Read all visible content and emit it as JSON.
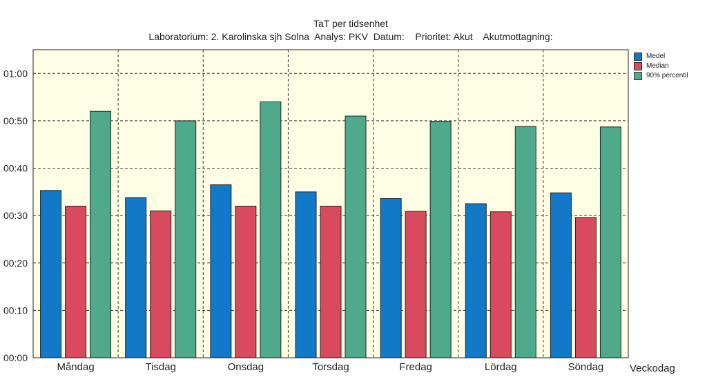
{
  "chart_data": {
    "type": "bar",
    "title": "TaT per tidsenhet",
    "subtitle": "Laboratorium: 2. Karolinska sjh Solna  Analys: PKV  Datum:    Prioritet: Akut    Akutmottagning:",
    "xlabel": "Veckodag",
    "ylabel": "",
    "y_unit": "minutes",
    "ylim": [
      0,
      65
    ],
    "y_ticks": [
      0,
      10,
      20,
      30,
      40,
      50,
      60
    ],
    "y_tick_labels": [
      "00:00",
      "00:10",
      "00:20",
      "00:30",
      "00:40",
      "00:50",
      "01:00"
    ],
    "grid": true,
    "legend_position": "right",
    "plot_background": "#ffffe6",
    "categories": [
      "Måndag",
      "Tisdag",
      "Onsdag",
      "Torsdag",
      "Fredag",
      "Lördag",
      "Söndag"
    ],
    "series": [
      {
        "name": "Medel",
        "color": "#1278c8",
        "values": [
          35.3,
          33.8,
          36.5,
          35.0,
          33.6,
          32.5,
          34.8
        ]
      },
      {
        "name": "Median",
        "color": "#d94a5e",
        "values": [
          32.0,
          31.0,
          32.0,
          32.0,
          30.9,
          30.8,
          29.6
        ]
      },
      {
        "name": "90% percentil",
        "color": "#4eaa8a",
        "values": [
          52.0,
          50.0,
          54.0,
          51.0,
          49.9,
          48.8,
          48.7
        ]
      }
    ]
  }
}
